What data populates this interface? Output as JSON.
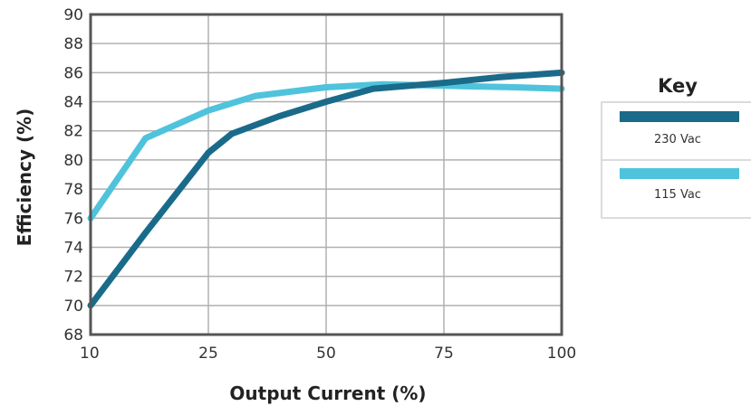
{
  "chart_data": {
    "type": "line",
    "title": "",
    "xlabel": "Output Current (%)",
    "ylabel": "Efficiency (%)",
    "x_ticks": [
      10,
      25,
      50,
      75,
      100
    ],
    "y_ticks": [
      68,
      70,
      72,
      74,
      76,
      78,
      80,
      82,
      84,
      86,
      88,
      90
    ],
    "ylim": [
      68,
      90
    ],
    "grid": true,
    "legend": {
      "title": "Key",
      "position": "right"
    },
    "series": [
      {
        "name": "230 Vac",
        "color": "#1a6b8a",
        "points": [
          [
            10,
            70.0
          ],
          [
            17,
            75.0
          ],
          [
            25,
            80.5
          ],
          [
            30,
            81.8
          ],
          [
            40,
            83.0
          ],
          [
            50,
            84.0
          ],
          [
            60,
            84.9
          ],
          [
            75,
            85.3
          ],
          [
            87,
            85.7
          ],
          [
            100,
            86.0
          ]
        ]
      },
      {
        "name": "115 Vac",
        "color": "#4fc3dc",
        "points": [
          [
            10,
            76.0
          ],
          [
            17,
            81.5
          ],
          [
            25,
            83.4
          ],
          [
            35,
            84.4
          ],
          [
            50,
            85.0
          ],
          [
            62,
            85.2
          ],
          [
            75,
            85.1
          ],
          [
            90,
            85.0
          ],
          [
            100,
            84.9
          ]
        ]
      }
    ]
  }
}
